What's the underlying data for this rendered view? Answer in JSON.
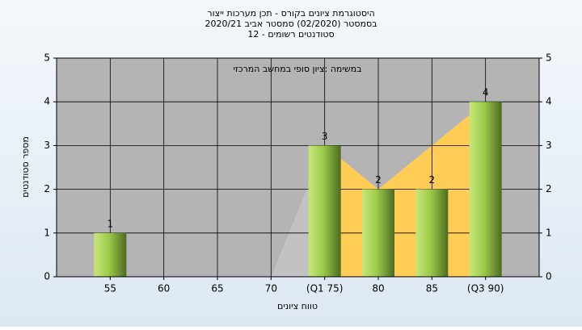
{
  "chart_data": {
    "type": "bar",
    "title": [
      "היסטוגרמת ציונים בקורס - תכן מערכות ייצור",
      "בסמסטר  (02/2020)  סמסטר אביב 2020/21",
      "סטודנטים רשומים - 12"
    ],
    "annotation": "במשימה :ציון סופי במחשב המרכזי",
    "x_label": "טווח ציונים",
    "y_label": "מספר סטודנטים",
    "categories": [
      "55",
      "60",
      "65",
      "70",
      "(Q1 75)",
      "80",
      "85",
      "(Q3 90)"
    ],
    "values": [
      1,
      0,
      0,
      0,
      3,
      2,
      2,
      4
    ],
    "color": "#9ccc4a",
    "areas": [
      {
        "color": "#c2c2c2",
        "values": [
          null,
          null,
          null,
          0,
          3,
          null,
          null,
          null
        ]
      },
      {
        "color": "#ffcc55",
        "values": [
          null,
          null,
          null,
          null,
          3,
          2,
          3,
          4
        ]
      }
    ],
    "ylim": [
      0,
      5
    ],
    "yticks": [
      0,
      1,
      2,
      3,
      4,
      5
    ],
    "grid": true
  }
}
